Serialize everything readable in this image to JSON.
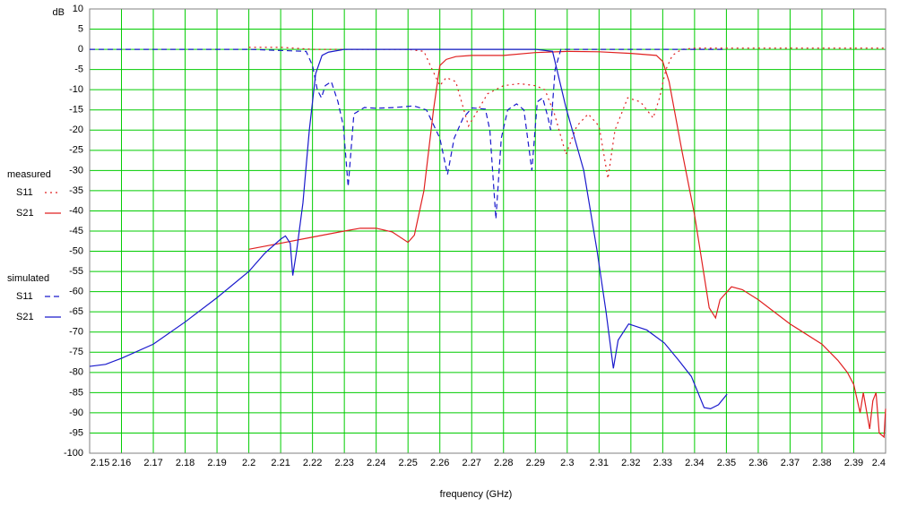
{
  "chart_data": {
    "type": "line",
    "y_axis_label": "dB",
    "x_axis_label": "frequency (GHz)",
    "xlim": [
      2.15,
      2.4
    ],
    "xticks": [
      2.15,
      2.16,
      2.17,
      2.18,
      2.19,
      2.2,
      2.21,
      2.22,
      2.23,
      2.24,
      2.25,
      2.26,
      2.27,
      2.28,
      2.29,
      2.3,
      2.31,
      2.32,
      2.33,
      2.34,
      2.35,
      2.36,
      2.37,
      2.38,
      2.39,
      2.4
    ],
    "ylim": [
      -100,
      10
    ],
    "yticks": [
      -100,
      -95,
      -90,
      -85,
      -80,
      -75,
      -70,
      -65,
      -60,
      -55,
      -50,
      -45,
      -40,
      -35,
      -30,
      -25,
      -20,
      -15,
      -10,
      -5,
      0,
      5,
      10
    ],
    "grid": true,
    "grid_color": "#00cc00",
    "series_groups": [
      {
        "name": "measured",
        "series": [
          {
            "name": "S11",
            "color": "#e02020",
            "dash": "dotted",
            "x": [
              2.2,
              2.21,
              2.22,
              2.23,
              2.24,
              2.25,
              2.255,
              2.257,
              2.26,
              2.262,
              2.265,
              2.269,
              2.272,
              2.275,
              2.28,
              2.285,
              2.29,
              2.293,
              2.296,
              2.2996,
              2.303,
              2.3066,
              2.31,
              2.3128,
              2.315,
              2.319,
              2.323,
              2.327,
              2.329,
              2.331,
              2.333,
              2.336,
              2.34,
              2.36,
              2.38,
              2.4
            ],
            "values": [
              0.5,
              0.5,
              0,
              0,
              0,
              0,
              -0.5,
              -4,
              -9,
              -7,
              -8,
              -19,
              -15,
              -11,
              -9,
              -8.5,
              -9,
              -10,
              -16,
              -26,
              -19,
              -16,
              -19,
              -32,
              -20,
              -12,
              -13,
              -17,
              -12,
              -5,
              -1.5,
              0,
              0.3,
              0.3,
              0.3,
              0.3
            ]
          },
          {
            "name": "S21",
            "color": "#e02020",
            "dash": "solid",
            "x": [
              2.2,
              2.21,
              2.22,
              2.23,
              2.235,
              2.24,
              2.245,
              2.25,
              2.252,
              2.255,
              2.258,
              2.26,
              2.262,
              2.265,
              2.27,
              2.28,
              2.29,
              2.3,
              2.31,
              2.32,
              2.328,
              2.33,
              2.332,
              2.336,
              2.34,
              2.3446,
              2.3466,
              2.348,
              2.3516,
              2.355,
              2.36,
              2.37,
              2.38,
              2.385,
              2.388,
              2.39,
              2.392,
              2.393,
              2.395,
              2.396,
              2.397,
              2.398,
              2.3995,
              2.4
            ],
            "values": [
              -49.5,
              -48,
              -46.5,
              -45,
              -44.3,
              -44.3,
              -45.2,
              -47.8,
              -46,
              -35,
              -15,
              -4,
              -2.5,
              -1.8,
              -1.5,
              -1.5,
              -0.8,
              -0.5,
              -0.6,
              -1,
              -1.5,
              -3,
              -8,
              -25,
              -41,
              -64,
              -66.5,
              -62,
              -58.8,
              -59.5,
              -62,
              -68,
              -73,
              -77,
              -80,
              -83,
              -90,
              -85,
              -94,
              -87,
              -85,
              -95,
              -96,
              -89
            ]
          }
        ]
      },
      {
        "name": "simulated",
        "series": [
          {
            "name": "S11",
            "color": "#1a1acc",
            "dash": "dashed",
            "x": [
              2.15,
              2.2,
              2.218,
              2.22,
              2.2215,
              2.2228,
              2.224,
              2.2259,
              2.228,
              2.2297,
              2.2312,
              2.233,
              2.2363,
              2.24,
              2.246,
              2.2518,
              2.2558,
              2.26,
              2.2624,
              2.2645,
              2.2673,
              2.2701,
              2.2743,
              2.2757,
              2.2776,
              2.2793,
              2.2813,
              2.2841,
              2.2864,
              2.2889,
              2.2906,
              2.2923,
              2.294,
              2.2948,
              2.2962,
              2.298,
              2.35
            ],
            "values": [
              0,
              0,
              -0.5,
              -4,
              -10,
              -12,
              -9,
              -8,
              -13,
              -19,
              -34,
              -16,
              -14.4,
              -14.6,
              -14.4,
              -14,
              -15,
              -22,
              -31,
              -22,
              -17,
              -14.5,
              -14.8,
              -20,
              -42,
              -22,
              -15,
              -13.5,
              -15,
              -30,
              -13,
              -12,
              -17,
              -20,
              -5,
              0,
              0
            ]
          },
          {
            "name": "S21",
            "color": "#1a1acc",
            "dash": "solid",
            "x": [
              2.15,
              2.155,
              2.16,
              2.17,
              2.18,
              2.19,
              2.2,
              2.205,
              2.21,
              2.2115,
              2.213,
              2.2138,
              2.215,
              2.217,
              2.219,
              2.221,
              2.223,
              2.225,
              2.23,
              2.26,
              2.29,
              2.2954,
              2.2996,
              2.3052,
              2.3094,
              2.3122,
              2.3145,
              2.316,
              2.3193,
              2.325,
              2.3305,
              2.335,
              2.339,
              2.343,
              2.345,
              2.3475,
              2.3502
            ],
            "values": [
              -78.5,
              -78,
              -76.5,
              -73,
              -67.5,
              -61.5,
              -55,
              -50.5,
              -47,
              -46.2,
              -48,
              -56,
              -50,
              -38,
              -20,
              -6,
              -1.5,
              -0.7,
              0,
              0,
              0,
              -0.5,
              -14.4,
              -30,
              -50,
              -65,
              -79,
              -72,
              -68,
              -69.5,
              -72.7,
              -77,
              -81,
              -88.7,
              -89,
              -88,
              -85.4
            ]
          }
        ]
      }
    ]
  }
}
